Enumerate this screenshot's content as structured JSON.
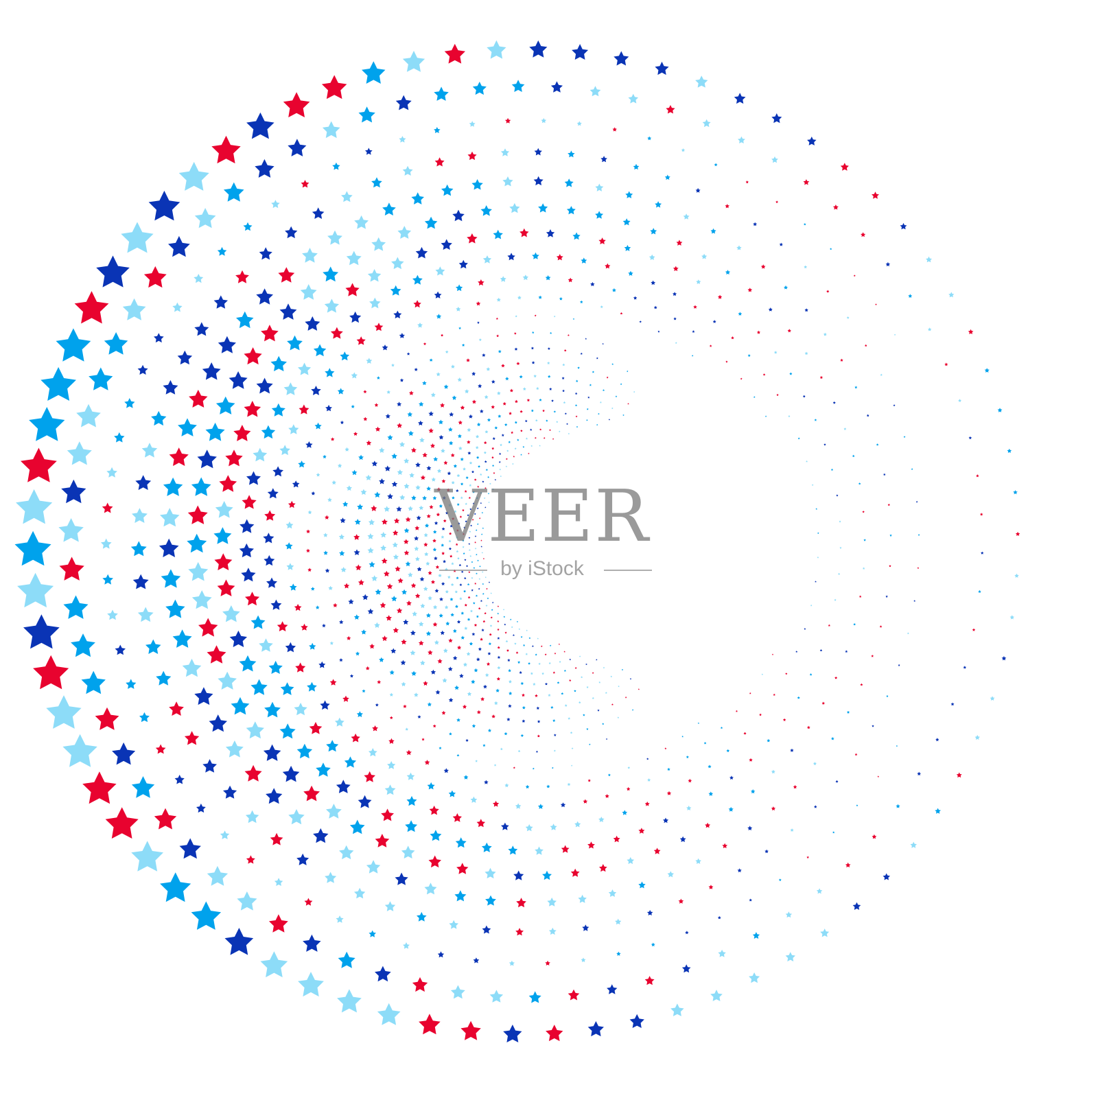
{
  "artwork": {
    "description_type": "spiral of stars",
    "colors": {
      "red": "#e8032f",
      "dark_blue": "#0a34b5",
      "mid_blue": "#00a2ec",
      "light_blue": "#8ddcf8",
      "background": "#ffffff"
    }
  },
  "watermark": {
    "logo": "VEER",
    "sub": "by iStock"
  }
}
